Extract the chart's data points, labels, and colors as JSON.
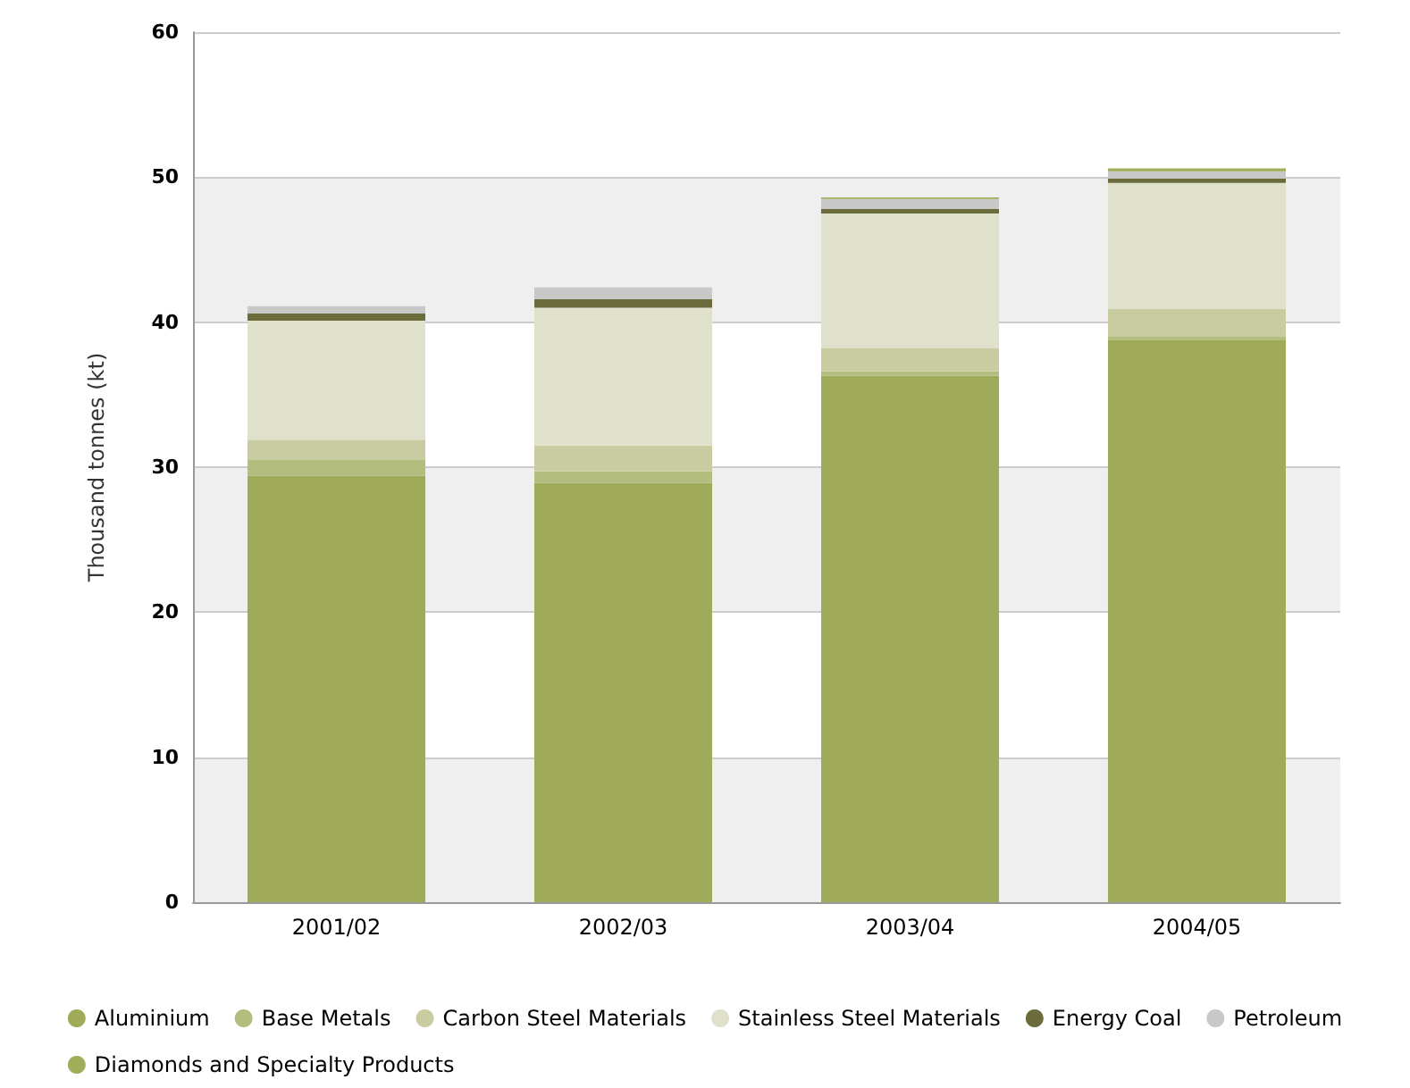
{
  "chart_data": {
    "type": "bar",
    "stacked": true,
    "ylabel": "Thousand tonnes (kt)",
    "categories": [
      "2001/02",
      "2002/03",
      "2003/04",
      "2004/05"
    ],
    "series": [
      {
        "name": "Aluminium",
        "color": "#a0ab5a",
        "values": [
          29.4,
          28.9,
          36.3,
          38.8
        ]
      },
      {
        "name": "Base Metals",
        "color": "#b3bd7d",
        "values": [
          1.1,
          0.8,
          0.3,
          0.2
        ]
      },
      {
        "name": "Carbon Steel Materials",
        "color": "#c9cca0",
        "values": [
          1.4,
          1.8,
          1.6,
          1.9
        ]
      },
      {
        "name": "Stainless Steel Materials",
        "color": "#e0e1cb",
        "values": [
          8.2,
          9.5,
          9.3,
          8.7
        ]
      },
      {
        "name": "Energy Coal",
        "color": "#6b6b3c",
        "values": [
          0.5,
          0.6,
          0.3,
          0.3
        ]
      },
      {
        "name": "Petroleum",
        "color": "#c8c8c8",
        "values": [
          0.5,
          0.8,
          0.7,
          0.5
        ]
      },
      {
        "name": "Diamonds and Specialty Products",
        "color": "#9fae58",
        "values": [
          0,
          0,
          0.1,
          0.2
        ]
      }
    ],
    "ylim": [
      0,
      60
    ],
    "yticks": [
      0,
      10,
      20,
      30,
      40,
      50,
      60
    ],
    "grid": "y",
    "legend": "bottom"
  }
}
